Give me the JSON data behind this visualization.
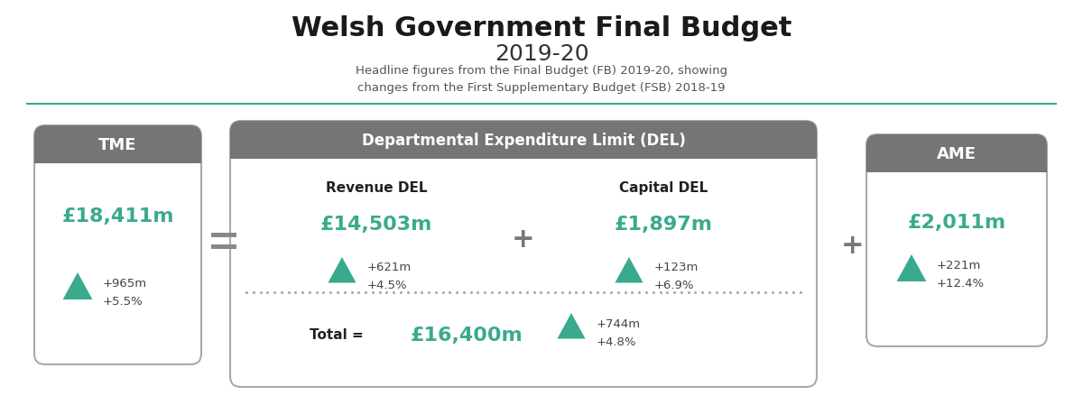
{
  "title": "Welsh Government Final Budget",
  "subtitle": "2019-20",
  "description": "Headline figures from the Final Budget (FB) 2019-20, showing\nchanges from the First Supplementary Budget (FSB) 2018-19",
  "bg_color": "#ffffff",
  "teal": "#3aaa8e",
  "header_gray": "#757575",
  "border_gray": "#aaaaaa",
  "text_dark": "#222222",
  "text_mid": "#555555",
  "tme": {
    "label": "TME",
    "value": "£18,411m",
    "change1": "+965m",
    "change2": "+5.5%"
  },
  "del": {
    "label": "Departmental Expenditure Limit (DEL)",
    "rev_label": "Revenue DEL",
    "rev_value": "£14,503m",
    "rev_change1": "+621m",
    "rev_change2": "+4.5%",
    "cap_label": "Capital DEL",
    "cap_value": "£1,897m",
    "cap_change1": "+123m",
    "cap_change2": "+6.9%",
    "total_label": "Total =",
    "total_value": "£16,400m",
    "total_change1": "+744m",
    "total_change2": "+4.8%"
  },
  "ame": {
    "label": "AME",
    "value": "£2,011m",
    "change1": "+221m",
    "change2": "+12.4%"
  }
}
